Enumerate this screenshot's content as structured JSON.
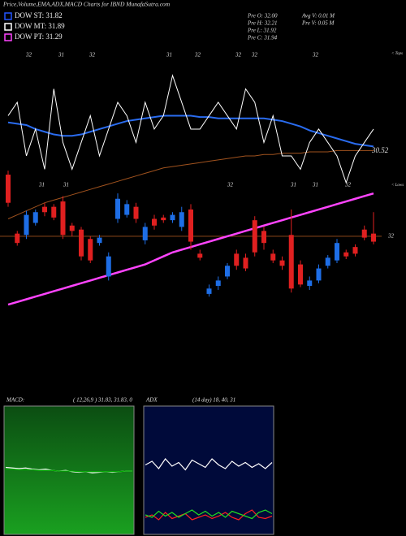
{
  "chart_data": [
    {
      "type": "candlestick",
      "title": "Price,Volume,EMA,ADX,MACD Charts for IBND MunafaSutra.com",
      "legend": [
        {
          "label": "DOW ST: 31.82",
          "color": "#2255ff"
        },
        {
          "label": "DOW MT: 31.89",
          "color": "#ffffff"
        },
        {
          "label": "DOW PT: 31.29",
          "color": "#ff44ff"
        }
      ],
      "stats": [
        "Pre  O: 32.00",
        "Pre  H: 32.21",
        "Pre  L: 31.92",
        "Pre  C: 31.94",
        "Avg V: 0.01 M",
        "Pre  V: 0.05 M"
      ],
      "top_labels": [
        "32",
        "31",
        "32",
        "31",
        "32",
        "32",
        "32",
        "32"
      ],
      "mid_labels": [
        "31",
        "31",
        "32",
        "31",
        "31",
        "32"
      ],
      "right_labels": [
        "< Tops",
        "< Lows"
      ],
      "last_label": "30.52",
      "up_color": "#1e6ee6",
      "down_color": "#e02020",
      "ylim": [
        31.43,
        33.43
      ],
      "yticks": [
        32
      ],
      "open": [
        32.46,
        32.02,
        32.01,
        32.1,
        32.22,
        32.22,
        32.26,
        32.08,
        32.05,
        31.98,
        31.95,
        31.7,
        32.13,
        32.16,
        32.22,
        31.97,
        32.13,
        32.14,
        32.12,
        32.07,
        32.2,
        31.87,
        31.57,
        31.63,
        31.7,
        31.87,
        31.84,
        32.12,
        32.04,
        31.87,
        31.82,
        32.01,
        31.79,
        31.63,
        31.67,
        31.78,
        31.82,
        31.88,
        31.92,
        32.05,
        32.02
      ],
      "high": [
        32.49,
        32.04,
        32.19,
        32.2,
        32.25,
        32.24,
        32.3,
        32.1,
        32.07,
        32.0,
        32.01,
        31.88,
        32.32,
        32.27,
        32.25,
        32.1,
        32.16,
        32.16,
        32.18,
        32.22,
        32.24,
        31.9,
        31.64,
        31.7,
        31.8,
        31.9,
        31.87,
        32.15,
        32.07,
        31.9,
        31.85,
        32.2,
        31.82,
        31.7,
        31.79,
        31.86,
        31.98,
        31.9,
        31.94,
        32.08,
        32.18
      ],
      "low": [
        32.22,
        31.93,
        31.98,
        32.08,
        32.15,
        32.12,
        31.98,
        32.0,
        31.82,
        31.8,
        31.93,
        31.67,
        32.1,
        32.14,
        32.1,
        31.94,
        32.05,
        32.1,
        32.1,
        32.04,
        31.9,
        31.82,
        31.55,
        31.6,
        31.68,
        31.75,
        31.74,
        31.85,
        31.9,
        31.8,
        31.75,
        31.58,
        31.62,
        31.6,
        31.65,
        31.76,
        31.8,
        31.83,
        31.85,
        31.97,
        31.94
      ],
      "close": [
        32.25,
        31.95,
        32.16,
        32.18,
        32.18,
        32.14,
        32.01,
        32.04,
        31.85,
        31.82,
        31.99,
        31.85,
        32.28,
        32.24,
        32.13,
        32.07,
        32.08,
        32.12,
        32.16,
        32.18,
        31.96,
        31.84,
        31.61,
        31.67,
        31.78,
        31.78,
        31.76,
        31.88,
        31.95,
        31.82,
        31.78,
        31.61,
        31.64,
        31.67,
        31.76,
        31.84,
        31.95,
        31.85,
        31.87,
        31.99,
        31.96
      ],
      "series": [
        {
          "color": "#ff44ff",
          "values": [
            31.49,
            31.51,
            31.53,
            31.55,
            31.57,
            31.59,
            31.61,
            31.63,
            31.65,
            31.67,
            31.69,
            31.71,
            31.73,
            31.75,
            31.77,
            31.79,
            31.82,
            31.85,
            31.88,
            31.9,
            31.92,
            31.94,
            31.96,
            31.98,
            32.0,
            32.02,
            32.04,
            32.06,
            32.08,
            32.1,
            32.12,
            32.14,
            32.16,
            32.18,
            32.2,
            32.22,
            32.24,
            32.26,
            32.28,
            32.3,
            32.32
          ]
        },
        {
          "color": "#a0521e",
          "values": [
            32.13,
            32.16,
            32.19,
            32.22,
            32.25,
            32.27,
            32.29,
            32.31,
            32.33,
            32.35,
            32.37,
            32.39,
            32.41,
            32.43,
            32.45,
            32.47,
            32.49,
            32.51,
            32.52,
            32.53,
            32.54,
            32.55,
            32.56,
            32.57,
            32.58,
            32.59,
            32.6,
            32.6,
            32.61,
            32.61,
            32.62,
            32.62,
            32.62,
            32.63,
            32.63,
            32.63,
            32.64,
            32.64,
            32.64,
            32.64,
            32.64
          ]
        },
        {
          "color": "#2a6cf0",
          "values": [
            32.85,
            32.84,
            32.83,
            32.8,
            32.78,
            32.76,
            32.75,
            32.75,
            32.76,
            32.78,
            32.8,
            32.82,
            32.84,
            32.86,
            32.87,
            32.88,
            32.89,
            32.9,
            32.9,
            32.9,
            32.9,
            32.89,
            32.89,
            32.88,
            32.88,
            32.88,
            32.88,
            32.88,
            32.88,
            32.87,
            32.86,
            32.84,
            32.82,
            32.79,
            32.77,
            32.75,
            32.73,
            32.71,
            32.69,
            32.68,
            32.67
          ]
        },
        {
          "color": "#ffffff",
          "values": [
            32.9,
            33.0,
            32.6,
            32.8,
            32.5,
            33.1,
            32.7,
            32.5,
            32.7,
            32.9,
            32.6,
            32.8,
            33.0,
            32.9,
            32.7,
            33.0,
            32.8,
            32.9,
            33.2,
            33.0,
            32.8,
            32.8,
            32.9,
            33.0,
            32.9,
            32.8,
            33.1,
            33.0,
            32.7,
            32.9,
            32.6,
            32.6,
            32.5,
            32.7,
            32.8,
            32.7,
            32.6,
            32.4,
            32.6,
            32.7,
            32.8
          ]
        }
      ]
    },
    {
      "type": "line",
      "title": "MACD:",
      "subtitle": "( 12,26,9 ) 31.83, 31.83, 0",
      "ylim": [
        -1,
        1
      ],
      "series": [
        {
          "color": "#ffffff",
          "values": [
            0.06,
            0.05,
            0.04,
            0.05,
            0.03,
            0.02,
            0.03,
            0.01,
            0.0,
            0.01,
            -0.01,
            -0.02,
            -0.01,
            -0.03,
            -0.02,
            -0.01,
            -0.02,
            -0.01,
            0.0,
            0.0
          ]
        },
        {
          "color": "#00aa00",
          "values": [
            0.03,
            0.03,
            0.02,
            0.02,
            0.02,
            0.01,
            0.01,
            0.01,
            0.0,
            0.0,
            0.0,
            -0.01,
            -0.01,
            -0.01,
            -0.01,
            -0.01,
            -0.01,
            -0.01,
            0.0,
            0.0
          ]
        }
      ]
    },
    {
      "type": "line",
      "title": "ADX",
      "subtitle": "(14 day) 18, 40, 31",
      "ylim": [
        0,
        100
      ],
      "series": [
        {
          "color": "#ffffff",
          "values": [
            55,
            58,
            52,
            60,
            54,
            57,
            51,
            59,
            56,
            53,
            60,
            55,
            52,
            58,
            54,
            57,
            53,
            56,
            52,
            57
          ]
        },
        {
          "color": "#ff2020",
          "values": [
            12,
            14,
            10,
            16,
            11,
            13,
            15,
            10,
            12,
            14,
            11,
            13,
            16,
            12,
            10,
            15,
            18,
            12,
            11,
            13
          ]
        },
        {
          "color": "#22dd22",
          "values": [
            14,
            12,
            17,
            13,
            16,
            12,
            15,
            18,
            14,
            17,
            13,
            16,
            12,
            17,
            15,
            13,
            11,
            16,
            18,
            15
          ]
        }
      ]
    }
  ]
}
